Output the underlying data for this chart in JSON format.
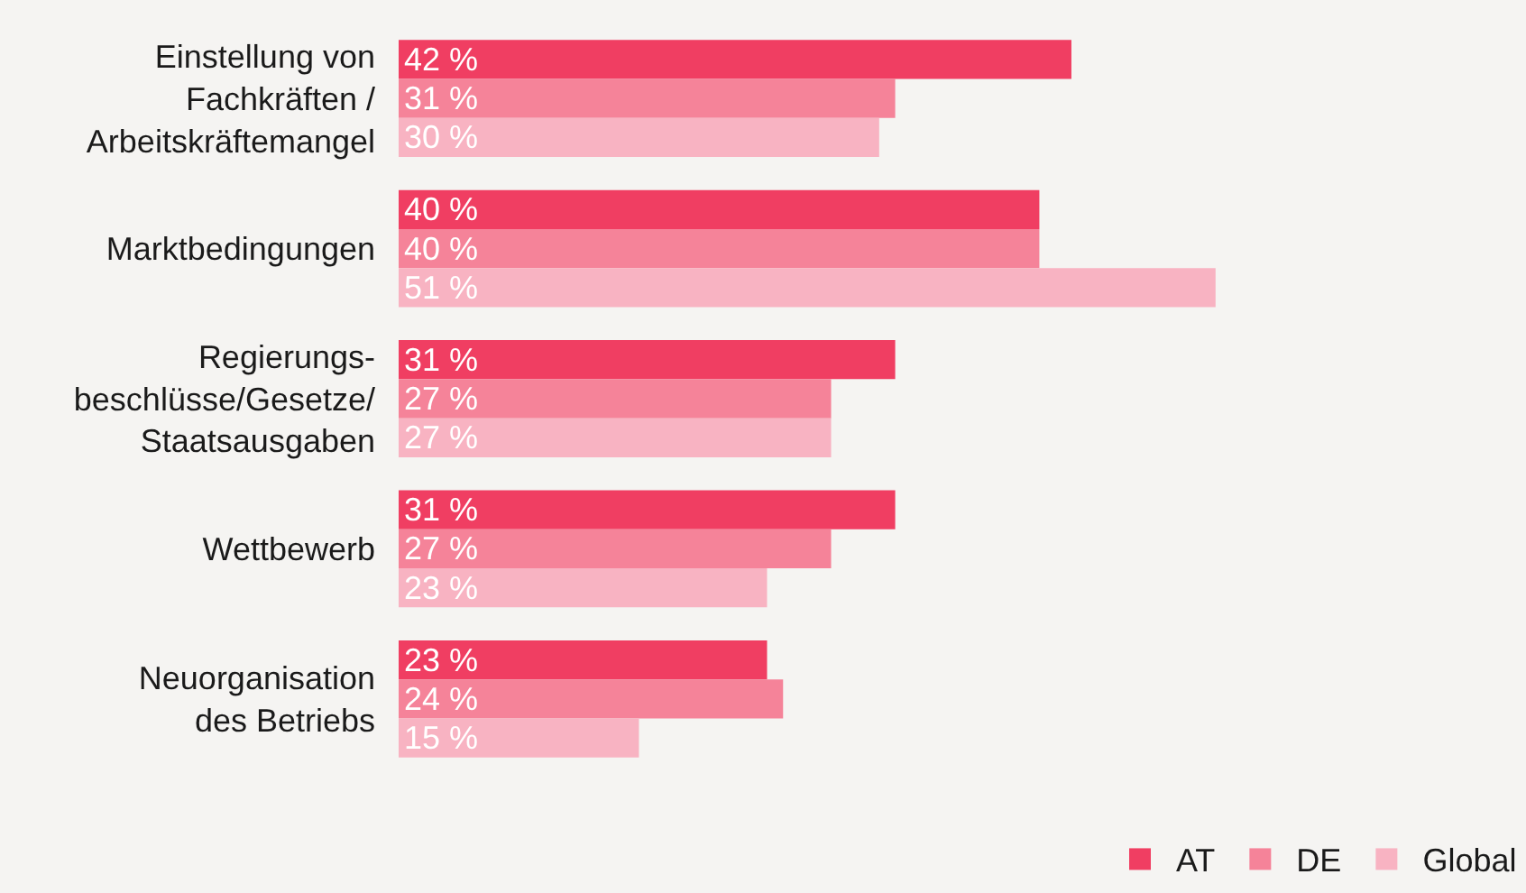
{
  "chart_data": {
    "type": "bar",
    "orientation": "horizontal",
    "categories": [
      "Einstellung von\nFachkräften /\nArbeitskräftemangel",
      "Marktbedingungen",
      "Regierungs-\nbeschlüsse/Gesetze/\nStaatsausgaben",
      "Wettbewerb",
      "Neuorganisation\ndes Betriebs"
    ],
    "series": [
      {
        "name": "AT",
        "color": "#f03e62",
        "values": [
          42,
          40,
          31,
          31,
          23
        ],
        "value_labels": [
          "42 %",
          "40 %",
          "31 %",
          "31 %",
          "23 %"
        ]
      },
      {
        "name": "DE",
        "color": "#f58399",
        "values": [
          31,
          40,
          27,
          27,
          24
        ],
        "value_labels": [
          "31 %",
          "40 %",
          "27 %",
          "27 %",
          "24 %"
        ]
      },
      {
        "name": "Global",
        "color": "#f8b3c2",
        "values": [
          30,
          51,
          27,
          23,
          15
        ],
        "value_labels": [
          "30 %",
          "51 %",
          "27 %",
          "23 %",
          "15 %"
        ]
      }
    ],
    "legend": "bottom right"
  }
}
